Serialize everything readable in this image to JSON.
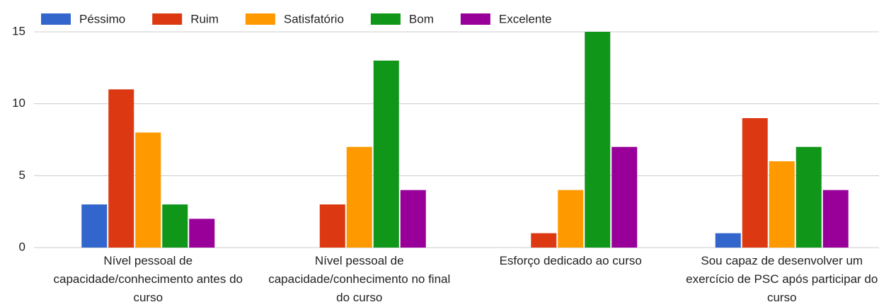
{
  "chart_data": {
    "type": "bar",
    "categories": [
      "Nível pessoal de capacidade/conhecimento antes do curso",
      "Nível pessoal de capacidade/conhecimento no final do curso",
      "Esforço dedicado ao curso",
      "Sou capaz de desenvolver um exercício de PSC após participar do curso"
    ],
    "series": [
      {
        "name": "Péssimo",
        "color": "#3366cc",
        "values": [
          3,
          0,
          0,
          1
        ]
      },
      {
        "name": "Ruim",
        "color": "#dc3912",
        "values": [
          11,
          3,
          1,
          9
        ]
      },
      {
        "name": "Satisfatório",
        "color": "#ff9900",
        "values": [
          8,
          7,
          4,
          6
        ]
      },
      {
        "name": "Bom",
        "color": "#109618",
        "values": [
          3,
          13,
          15,
          7
        ]
      },
      {
        "name": "Excelente",
        "color": "#990099",
        "values": [
          2,
          4,
          7,
          4
        ]
      }
    ],
    "ylim": [
      0,
      15
    ],
    "yticks": [
      0,
      5,
      10,
      15
    ],
    "grid": true,
    "legend": "top"
  }
}
